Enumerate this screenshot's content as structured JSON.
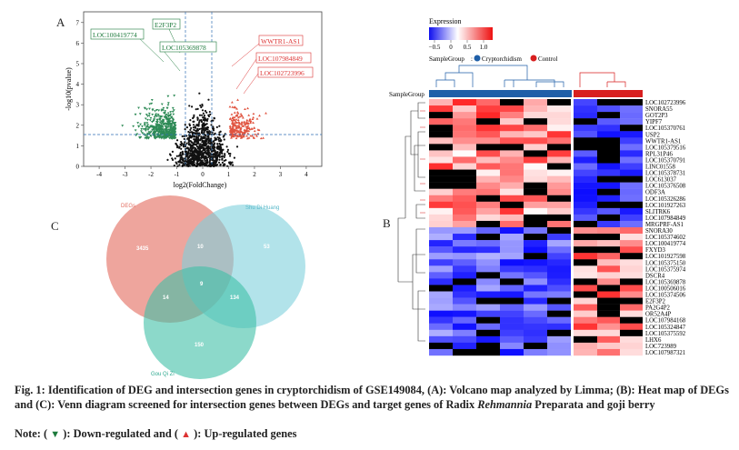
{
  "panels": {
    "A": {
      "letter": "A"
    },
    "B": {
      "letter": "B"
    },
    "C": {
      "letter": "C"
    }
  },
  "volcano": {
    "ylabel": "-log10(pvalue)",
    "xlabel": "log2(FoldChange)",
    "xticks": [
      "-4",
      "-3",
      "-2",
      "-1",
      "0",
      "1",
      "2",
      "3",
      "4"
    ],
    "yticks": [
      "0",
      "1",
      "2",
      "3",
      "4",
      "5",
      "6",
      "7"
    ],
    "green_labels": [
      "LOC100419774",
      "E2F3P2",
      "LOC105369878"
    ],
    "red_labels": [
      "WWTR1-AS1",
      "LOC107984849",
      "LOC102723996"
    ],
    "colors": {
      "down": "#1d7a3c",
      "up": "#e0533f",
      "ns": "#111111"
    }
  },
  "heatmap": {
    "legend_title": "Expression",
    "legend_ticks": [
      "−0.5",
      "0",
      "0.5",
      "1.0"
    ],
    "samplegroup_title": "SampleGroup",
    "group_labels": [
      "Cryptorchidism",
      "Control"
    ],
    "group_colors": {
      "Cryptorchidism": "#1f5fa8",
      "Control": "#d81f1f"
    },
    "row_annotation_label": "SampleGroup",
    "genes_top": [
      "LOC102723996",
      "SNORA55",
      "GOT2P3",
      "YIPF7",
      "LOC105370761",
      "USP2",
      "WWTR1-AS1",
      "LOC105379516",
      "RPL31P46",
      "LOC105370791",
      "LINC01558",
      "LOC105378731",
      "LOC613037",
      "LOC105376508",
      "ODF3A",
      "LOC105326286",
      "LOC101927263",
      "SLITRK6",
      "LOC107984849",
      "MRGPRF-AS1"
    ],
    "genes_bottom": [
      "SNORA30",
      "LOC105374602",
      "LOC100419774",
      "FXYD3",
      "LOC101927598",
      "LOC105375150",
      "LOC105375974",
      "DSCR4",
      "LOC105369878",
      "LOC100506016",
      "LOC105374506",
      "E2F3P2",
      "PA2G4P2",
      "OR52A4P",
      "LOC107984168",
      "LOC105324847",
      "LOC105375592",
      "LHX6",
      "LOC723989",
      "LOC107987321"
    ]
  },
  "venn": {
    "set_labels": [
      "DEGs",
      "Shu Di Huang",
      "Gou Qi Zi"
    ],
    "counts": {
      "degs_only": "3435",
      "degs_shu": "10",
      "shu_only": "53",
      "center": "9",
      "degs_gou": "14",
      "shu_gou": "134",
      "gou_only": "150"
    },
    "colors": {
      "degs": "#e8877c",
      "shu": "#7fd0dc",
      "gou": "#3fbfa7"
    }
  },
  "caption": {
    "fig": "Fig. 1: ",
    "text_before_italic": "Identification of DEG and intersection genes in cryptorchidism of GSE149084, (A): Volcano map analyzed by Limma; (B): Heat map of DEGs and (C): Venn diagram screened for intersection genes between DEGs and target genes of Radix ",
    "italic": "Rehmannia",
    "text_after_italic": " Preparata and goji berry"
  },
  "note": {
    "prefix": "Note: (",
    "down_symbol": "▼",
    "down_text": "): Down-regulated and (",
    "up_symbol": "▲",
    "up_text": "): Up-regulated genes"
  }
}
